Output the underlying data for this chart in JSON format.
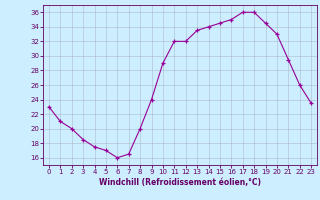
{
  "x": [
    0,
    1,
    2,
    3,
    4,
    5,
    6,
    7,
    8,
    9,
    10,
    11,
    12,
    13,
    14,
    15,
    16,
    17,
    18,
    19,
    20,
    21,
    22,
    23
  ],
  "y": [
    23,
    21,
    20,
    18.5,
    17.5,
    17,
    16,
    16.5,
    20,
    24,
    29,
    32,
    32,
    33.5,
    34,
    34.5,
    35,
    36,
    36,
    34.5,
    33,
    29.5,
    26,
    23.5
  ],
  "line_color": "#990099",
  "marker": "+",
  "markersize": 3,
  "linewidth": 0.8,
  "markeredgewidth": 0.9,
  "xlabel": "Windchill (Refroidissement éolien,°C)",
  "ylim": [
    15,
    37
  ],
  "xlim": [
    -0.5,
    23.5
  ],
  "yticks": [
    16,
    18,
    20,
    22,
    24,
    26,
    28,
    30,
    32,
    34,
    36
  ],
  "xticks": [
    0,
    1,
    2,
    3,
    4,
    5,
    6,
    7,
    8,
    9,
    10,
    11,
    12,
    13,
    14,
    15,
    16,
    17,
    18,
    19,
    20,
    21,
    22,
    23
  ],
  "background_color": "#cceeff",
  "grid_color": "#aabbcc",
  "axis_color": "#660066",
  "tick_fontsize": 5,
  "xlabel_fontsize": 5.5
}
